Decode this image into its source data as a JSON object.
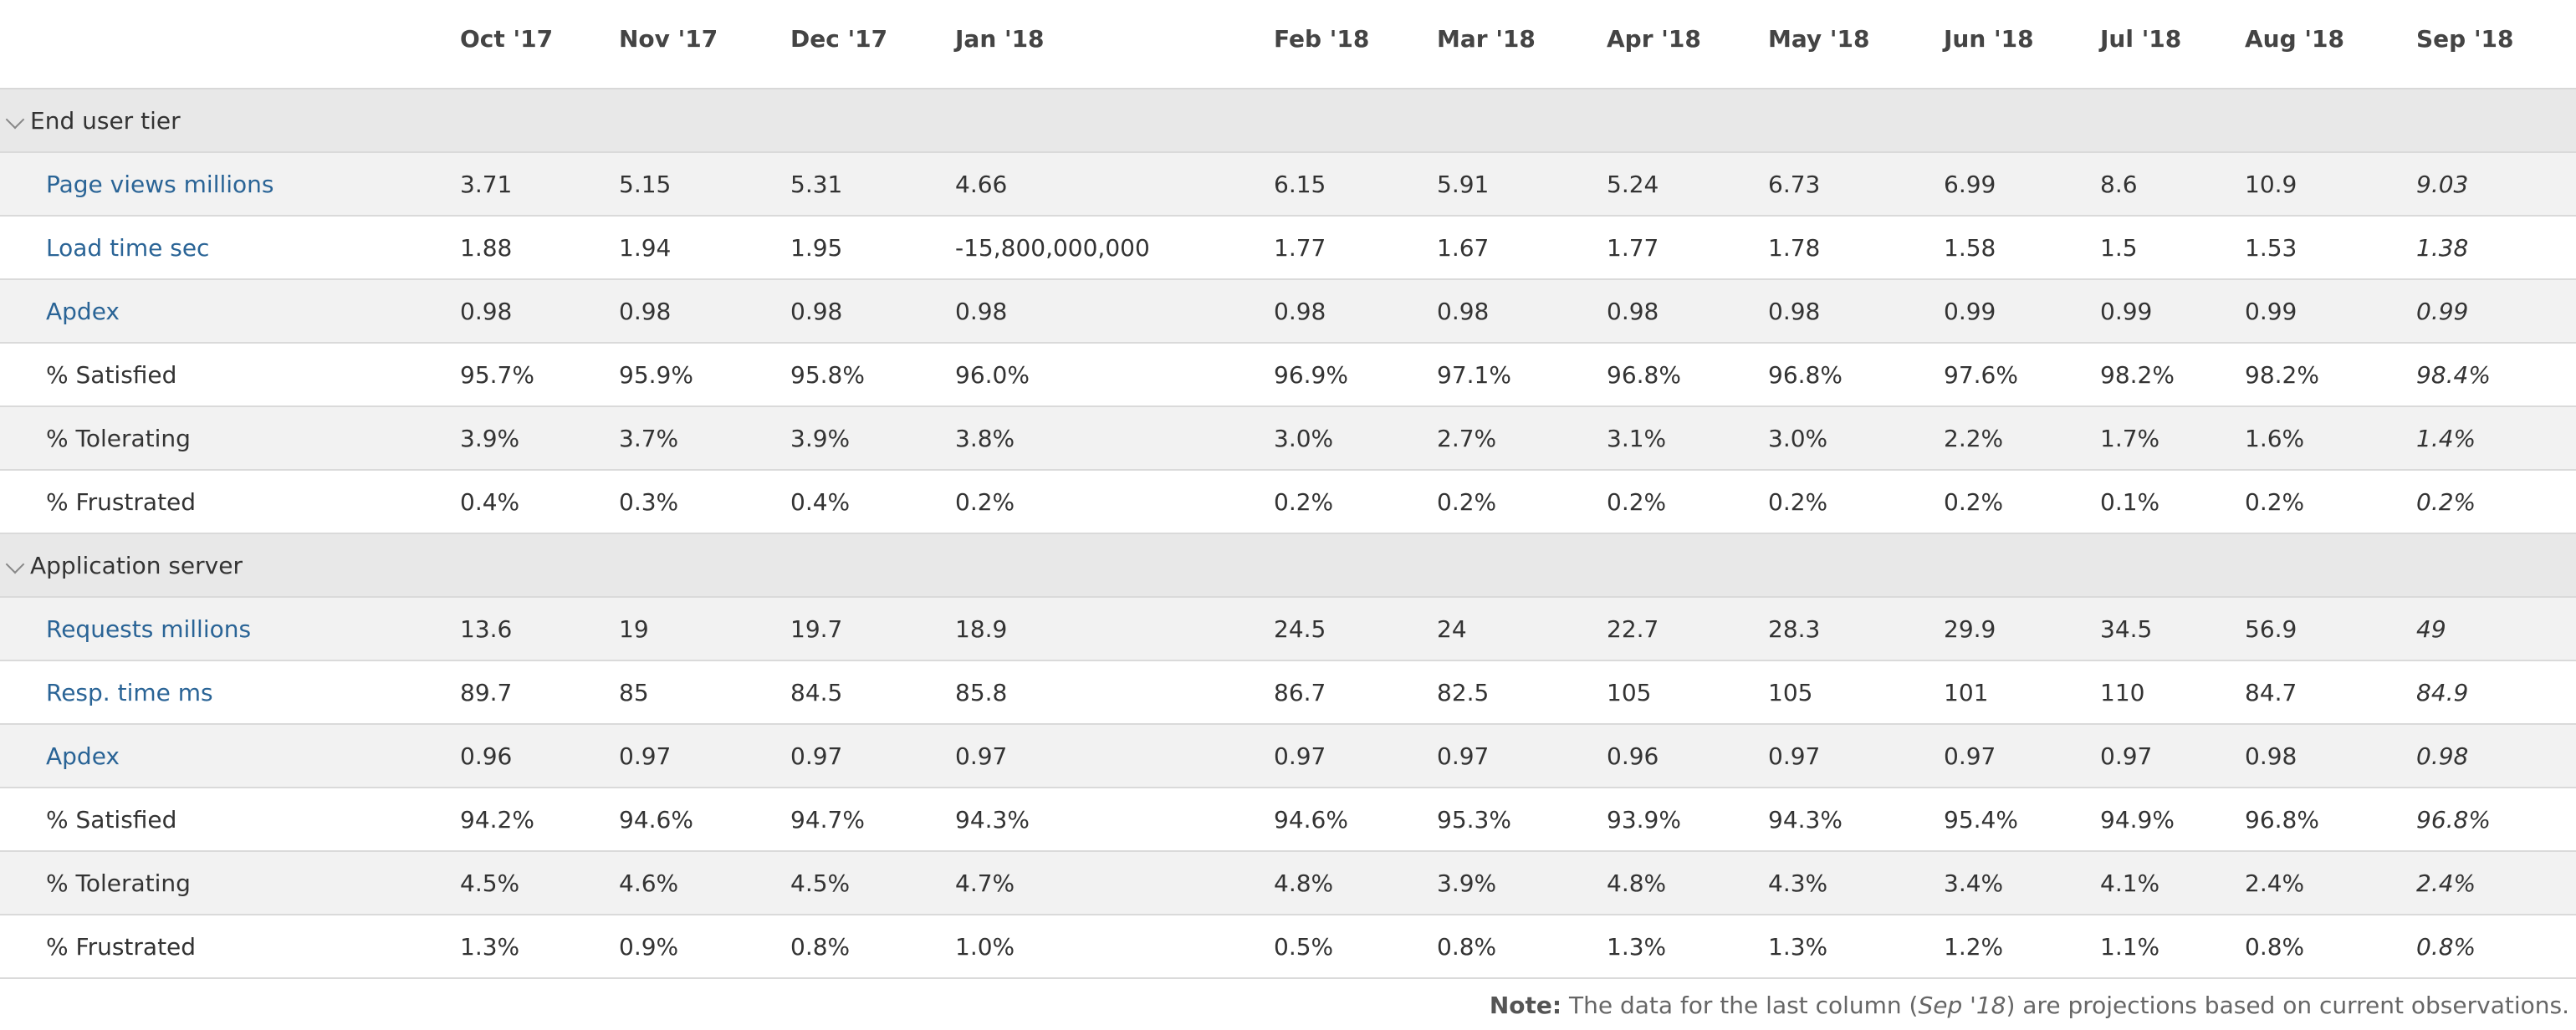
{
  "columns": [
    "Oct '17",
    "Nov '17",
    "Dec '17",
    "Jan '18",
    "Feb '18",
    "Mar '18",
    "Apr '18",
    "May '18",
    "Jun '18",
    "Jul '18",
    "Aug '18",
    "Sep '18"
  ],
  "groups": [
    {
      "label": "End user tier",
      "rows": [
        {
          "label": "Page views millions",
          "link": true,
          "values": [
            "3.71",
            "5.15",
            "5.31",
            "4.66",
            "6.15",
            "5.91",
            "5.24",
            "6.73",
            "6.99",
            "8.6",
            "10.9",
            "9.03"
          ]
        },
        {
          "label": "Load time sec",
          "link": true,
          "values": [
            "1.88",
            "1.94",
            "1.95",
            "-15,800,000,000",
            "1.77",
            "1.67",
            "1.77",
            "1.78",
            "1.58",
            "1.5",
            "1.53",
            "1.38"
          ]
        },
        {
          "label": "Apdex",
          "link": true,
          "values": [
            "0.98",
            "0.98",
            "0.98",
            "0.98",
            "0.98",
            "0.98",
            "0.98",
            "0.98",
            "0.99",
            "0.99",
            "0.99",
            "0.99"
          ]
        },
        {
          "label": "% Satisfied",
          "link": false,
          "values": [
            "95.7%",
            "95.9%",
            "95.8%",
            "96.0%",
            "96.9%",
            "97.1%",
            "96.8%",
            "96.8%",
            "97.6%",
            "98.2%",
            "98.2%",
            "98.4%"
          ]
        },
        {
          "label": "% Tolerating",
          "link": false,
          "values": [
            "3.9%",
            "3.7%",
            "3.9%",
            "3.8%",
            "3.0%",
            "2.7%",
            "3.1%",
            "3.0%",
            "2.2%",
            "1.7%",
            "1.6%",
            "1.4%"
          ]
        },
        {
          "label": "% Frustrated",
          "link": false,
          "values": [
            "0.4%",
            "0.3%",
            "0.4%",
            "0.2%",
            "0.2%",
            "0.2%",
            "0.2%",
            "0.2%",
            "0.2%",
            "0.1%",
            "0.2%",
            "0.2%"
          ]
        }
      ]
    },
    {
      "label": "Application server",
      "rows": [
        {
          "label": "Requests millions",
          "link": true,
          "values": [
            "13.6",
            "19",
            "19.7",
            "18.9",
            "24.5",
            "24",
            "22.7",
            "28.3",
            "29.9",
            "34.5",
            "56.9",
            "49"
          ]
        },
        {
          "label": "Resp. time ms",
          "link": true,
          "values": [
            "89.7",
            "85",
            "84.5",
            "85.8",
            "86.7",
            "82.5",
            "105",
            "105",
            "101",
            "110",
            "84.7",
            "84.9"
          ]
        },
        {
          "label": "Apdex",
          "link": true,
          "values": [
            "0.96",
            "0.97",
            "0.97",
            "0.97",
            "0.97",
            "0.97",
            "0.96",
            "0.97",
            "0.97",
            "0.97",
            "0.98",
            "0.98"
          ]
        },
        {
          "label": "% Satisfied",
          "link": false,
          "values": [
            "94.2%",
            "94.6%",
            "94.7%",
            "94.3%",
            "94.6%",
            "95.3%",
            "93.9%",
            "94.3%",
            "95.4%",
            "94.9%",
            "96.8%",
            "96.8%"
          ]
        },
        {
          "label": "% Tolerating",
          "link": false,
          "values": [
            "4.5%",
            "4.6%",
            "4.5%",
            "4.7%",
            "4.8%",
            "3.9%",
            "4.8%",
            "4.3%",
            "3.4%",
            "4.1%",
            "2.4%",
            "2.4%"
          ]
        },
        {
          "label": "% Frustrated",
          "link": false,
          "values": [
            "1.3%",
            "0.9%",
            "0.8%",
            "1.0%",
            "0.5%",
            "0.8%",
            "1.3%",
            "1.3%",
            "1.2%",
            "1.1%",
            "0.8%",
            "0.8%"
          ]
        }
      ]
    }
  ],
  "note": {
    "prefix": "Note:",
    "text_before": " The data for the last column (",
    "column": "Sep '18",
    "text_after": ") are projections based on current observations."
  },
  "colors": {
    "link": "#2a6496",
    "group_bg": "#e8e8e8",
    "row_shade": "#f2f2f2",
    "border": "#dadada"
  },
  "icons": {
    "group_toggle": "chevron-down-icon"
  }
}
